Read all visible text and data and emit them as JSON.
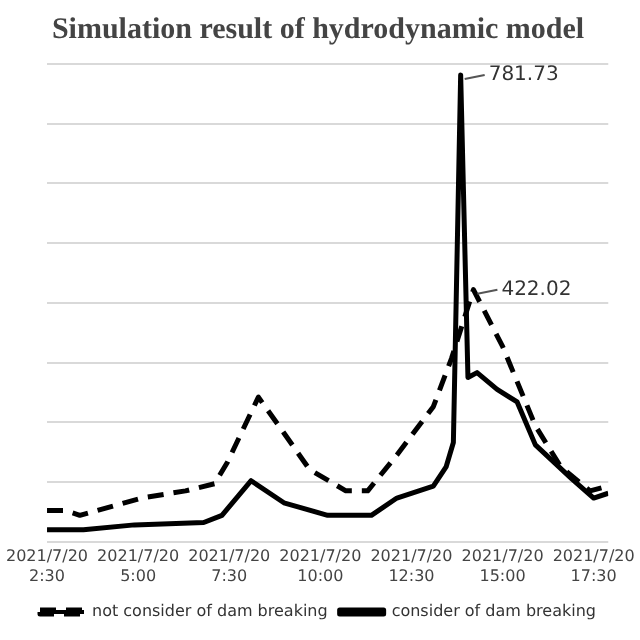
{
  "chart_data": {
    "type": "line",
    "title": "Simulation result of hydrodynamic model",
    "xlim": [
      "2021-07-20T02:30",
      "2021-07-20T17:54"
    ],
    "xticks": [
      {
        "value": "2021-07-20T02:30",
        "label": "2021/7/20 2:30"
      },
      {
        "value": "2021-07-20T05:00",
        "label": "2021/7/20 5:00"
      },
      {
        "value": "2021-07-20T07:30",
        "label": "2021/7/20 7:30"
      },
      {
        "value": "2021-07-20T10:00",
        "label": "2021/7/20 10:00"
      },
      {
        "value": "2021-07-20T12:30",
        "label": "2021/7/20 12:30"
      },
      {
        "value": "2021-07-20T15:00",
        "label": "2021/7/20 15:00"
      },
      {
        "value": "2021-07-20T17:30",
        "label": "2021/7/20 17:30"
      }
    ],
    "ylim": [
      0,
      800
    ],
    "yticks": [
      {
        "value": 0,
        "label": null
      },
      {
        "value": 100,
        "label": null
      },
      {
        "value": 200,
        "label": null
      },
      {
        "value": 300,
        "label": null
      },
      {
        "value": 400,
        "label": null
      },
      {
        "value": 500,
        "label": null
      },
      {
        "value": 600,
        "label": null
      },
      {
        "value": 700,
        "label": null
      },
      {
        "value": 800,
        "label": null
      }
    ],
    "tick_labels": "x",
    "grid": "y",
    "legend": "bottom",
    "marker": "none",
    "series": [
      {
        "name": "not consider of dam breaking",
        "color": "#000000",
        "line_style": "dashed",
        "x": [
          "2021-07-20T02:30",
          "2021-07-20T03:00",
          "2021-07-20T03:24",
          "2021-07-20T05:06",
          "2021-07-20T06:18",
          "2021-07-20T07:06",
          "2021-07-20T07:27",
          "2021-07-20T08:18",
          "2021-07-20T09:00",
          "2021-07-20T09:42",
          "2021-07-20T10:42",
          "2021-07-20T11:18",
          "2021-07-20T12:06",
          "2021-07-20T13:06",
          "2021-07-20T13:36",
          "2021-07-20T14:12",
          "2021-07-20T15:00",
          "2021-07-20T15:54",
          "2021-07-20T16:36",
          "2021-07-20T17:24",
          "2021-07-20T17:54"
        ],
        "values": [
          52,
          52,
          44,
          73,
          85,
          97,
          133,
          242,
          182,
          121,
          85,
          85,
          145,
          226,
          307,
          422.02,
          327,
          194,
          125,
          85,
          93
        ],
        "value_labels": [
          null,
          null,
          null,
          null,
          null,
          null,
          null,
          null,
          null,
          null,
          null,
          null,
          null,
          null,
          null,
          "422.02",
          null,
          null,
          null,
          null,
          null
        ]
      },
      {
        "name": "consider of dam breaking",
        "color": "#000000",
        "line_style": "solid",
        "x": [
          "2021-07-20T02:30",
          "2021-07-20T03:30",
          "2021-07-20T04:54",
          "2021-07-20T06:48",
          "2021-07-20T07:18",
          "2021-07-20T08:06",
          "2021-07-20T09:00",
          "2021-07-20T10:12",
          "2021-07-20T11:24",
          "2021-07-20T12:06",
          "2021-07-20T13:06",
          "2021-07-20T13:27",
          "2021-07-20T13:39",
          "2021-07-20T13:51",
          "2021-07-20T14:03",
          "2021-07-20T14:18",
          "2021-07-20T14:51",
          "2021-07-20T15:24",
          "2021-07-20T15:54",
          "2021-07-20T16:54",
          "2021-07-20T17:30",
          "2021-07-20T17:54"
        ],
        "values": [
          20,
          20,
          28,
          32,
          44,
          102,
          65,
          44,
          44,
          73,
          93,
          125,
          166,
          781.73,
          275,
          283,
          255,
          234,
          162,
          105,
          73,
          81
        ],
        "value_labels": [
          null,
          null,
          null,
          null,
          null,
          null,
          null,
          null,
          null,
          null,
          null,
          null,
          null,
          "781.73",
          null,
          null,
          null,
          null,
          null,
          null,
          null,
          null
        ]
      }
    ]
  }
}
